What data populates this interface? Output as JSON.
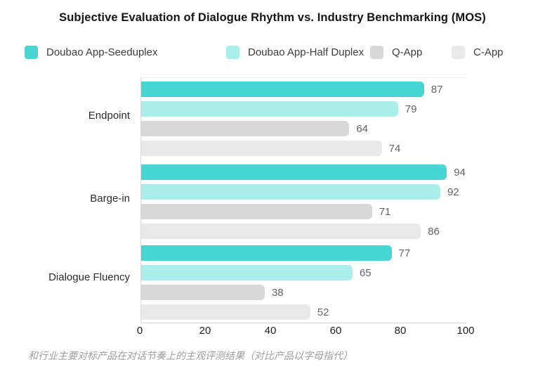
{
  "title": "Subjective Evaluation of Dialogue Rhythm vs. Industry Benchmarking (MOS)",
  "footer_note": "和行业主要对标产品在对话节奏上的主观评测结果（对比产品以字母指代）",
  "colors": {
    "seeduplex": "#46d6d4",
    "half_duplex": "#a9eee9",
    "q_app": "#d8d8d8",
    "c_app": "#e9e9e9",
    "axis_line": "#d9d9d9"
  },
  "chart_data": {
    "type": "bar",
    "orientation": "horizontal",
    "title": "Subjective Evaluation of Dialogue Rhythm vs. Industry Benchmarking (MOS)",
    "categories": [
      "Endpoint",
      "Barge-in",
      "Dialogue Fluency"
    ],
    "series": [
      {
        "name": "Doubao App-Seeduplex",
        "color": "#46d6d4",
        "values": [
          87,
          94,
          77
        ]
      },
      {
        "name": "Doubao App-Half Duplex",
        "color": "#a9eee9",
        "values": [
          79,
          92,
          65
        ]
      },
      {
        "name": "Q-App",
        "color": "#d8d8d8",
        "values": [
          64,
          71,
          38
        ]
      },
      {
        "name": "C-App",
        "color": "#e9e9e9",
        "values": [
          74,
          86,
          52
        ]
      }
    ],
    "xticks": [
      "0",
      "20",
      "40",
      "60",
      "80",
      "100"
    ],
    "xlim": [
      0,
      100
    ],
    "xlabel": "",
    "ylabel": "",
    "grid": false,
    "legend_position": "top",
    "value_labels": "end-of-bar"
  }
}
